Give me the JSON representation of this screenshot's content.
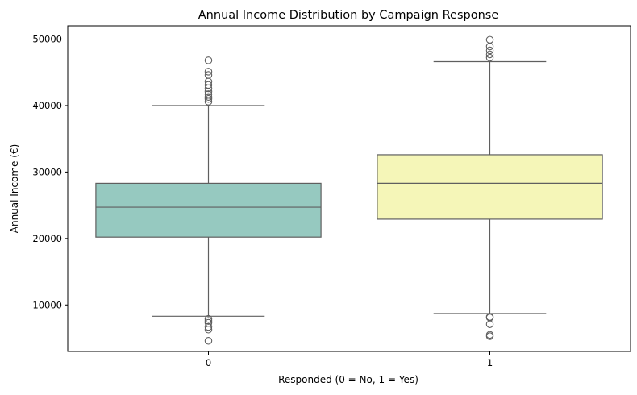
{
  "chart_data": {
    "type": "box",
    "title": "Annual Income Distribution by Campaign Response",
    "xlabel": "Responded (0 = No, 1 = Yes)",
    "ylabel": "Annual Income (€)",
    "categories": [
      "0",
      "1"
    ],
    "ylim": [
      3000,
      52000
    ],
    "yticks": [
      10000,
      20000,
      30000,
      40000,
      50000
    ],
    "grid": false,
    "legend": "none",
    "boxes": [
      {
        "category": "0",
        "color": "#96c9c0",
        "whisker_low": 8300,
        "q1": 20200,
        "median": 24700,
        "q3": 28300,
        "whisker_high": 40000,
        "outliers": [
          40600,
          41000,
          41300,
          41700,
          42100,
          42600,
          43100,
          43600,
          44600,
          45100,
          46800,
          7900,
          7600,
          7300,
          6700,
          6300,
          4600
        ]
      },
      {
        "category": "1",
        "color": "#f5f6b8",
        "whisker_low": 8700,
        "q1": 22900,
        "median": 28300,
        "q3": 32600,
        "whisker_high": 46600,
        "outliers": [
          47200,
          47700,
          48300,
          48900,
          49900,
          8200,
          8100,
          7100,
          5500,
          5300
        ]
      }
    ]
  }
}
